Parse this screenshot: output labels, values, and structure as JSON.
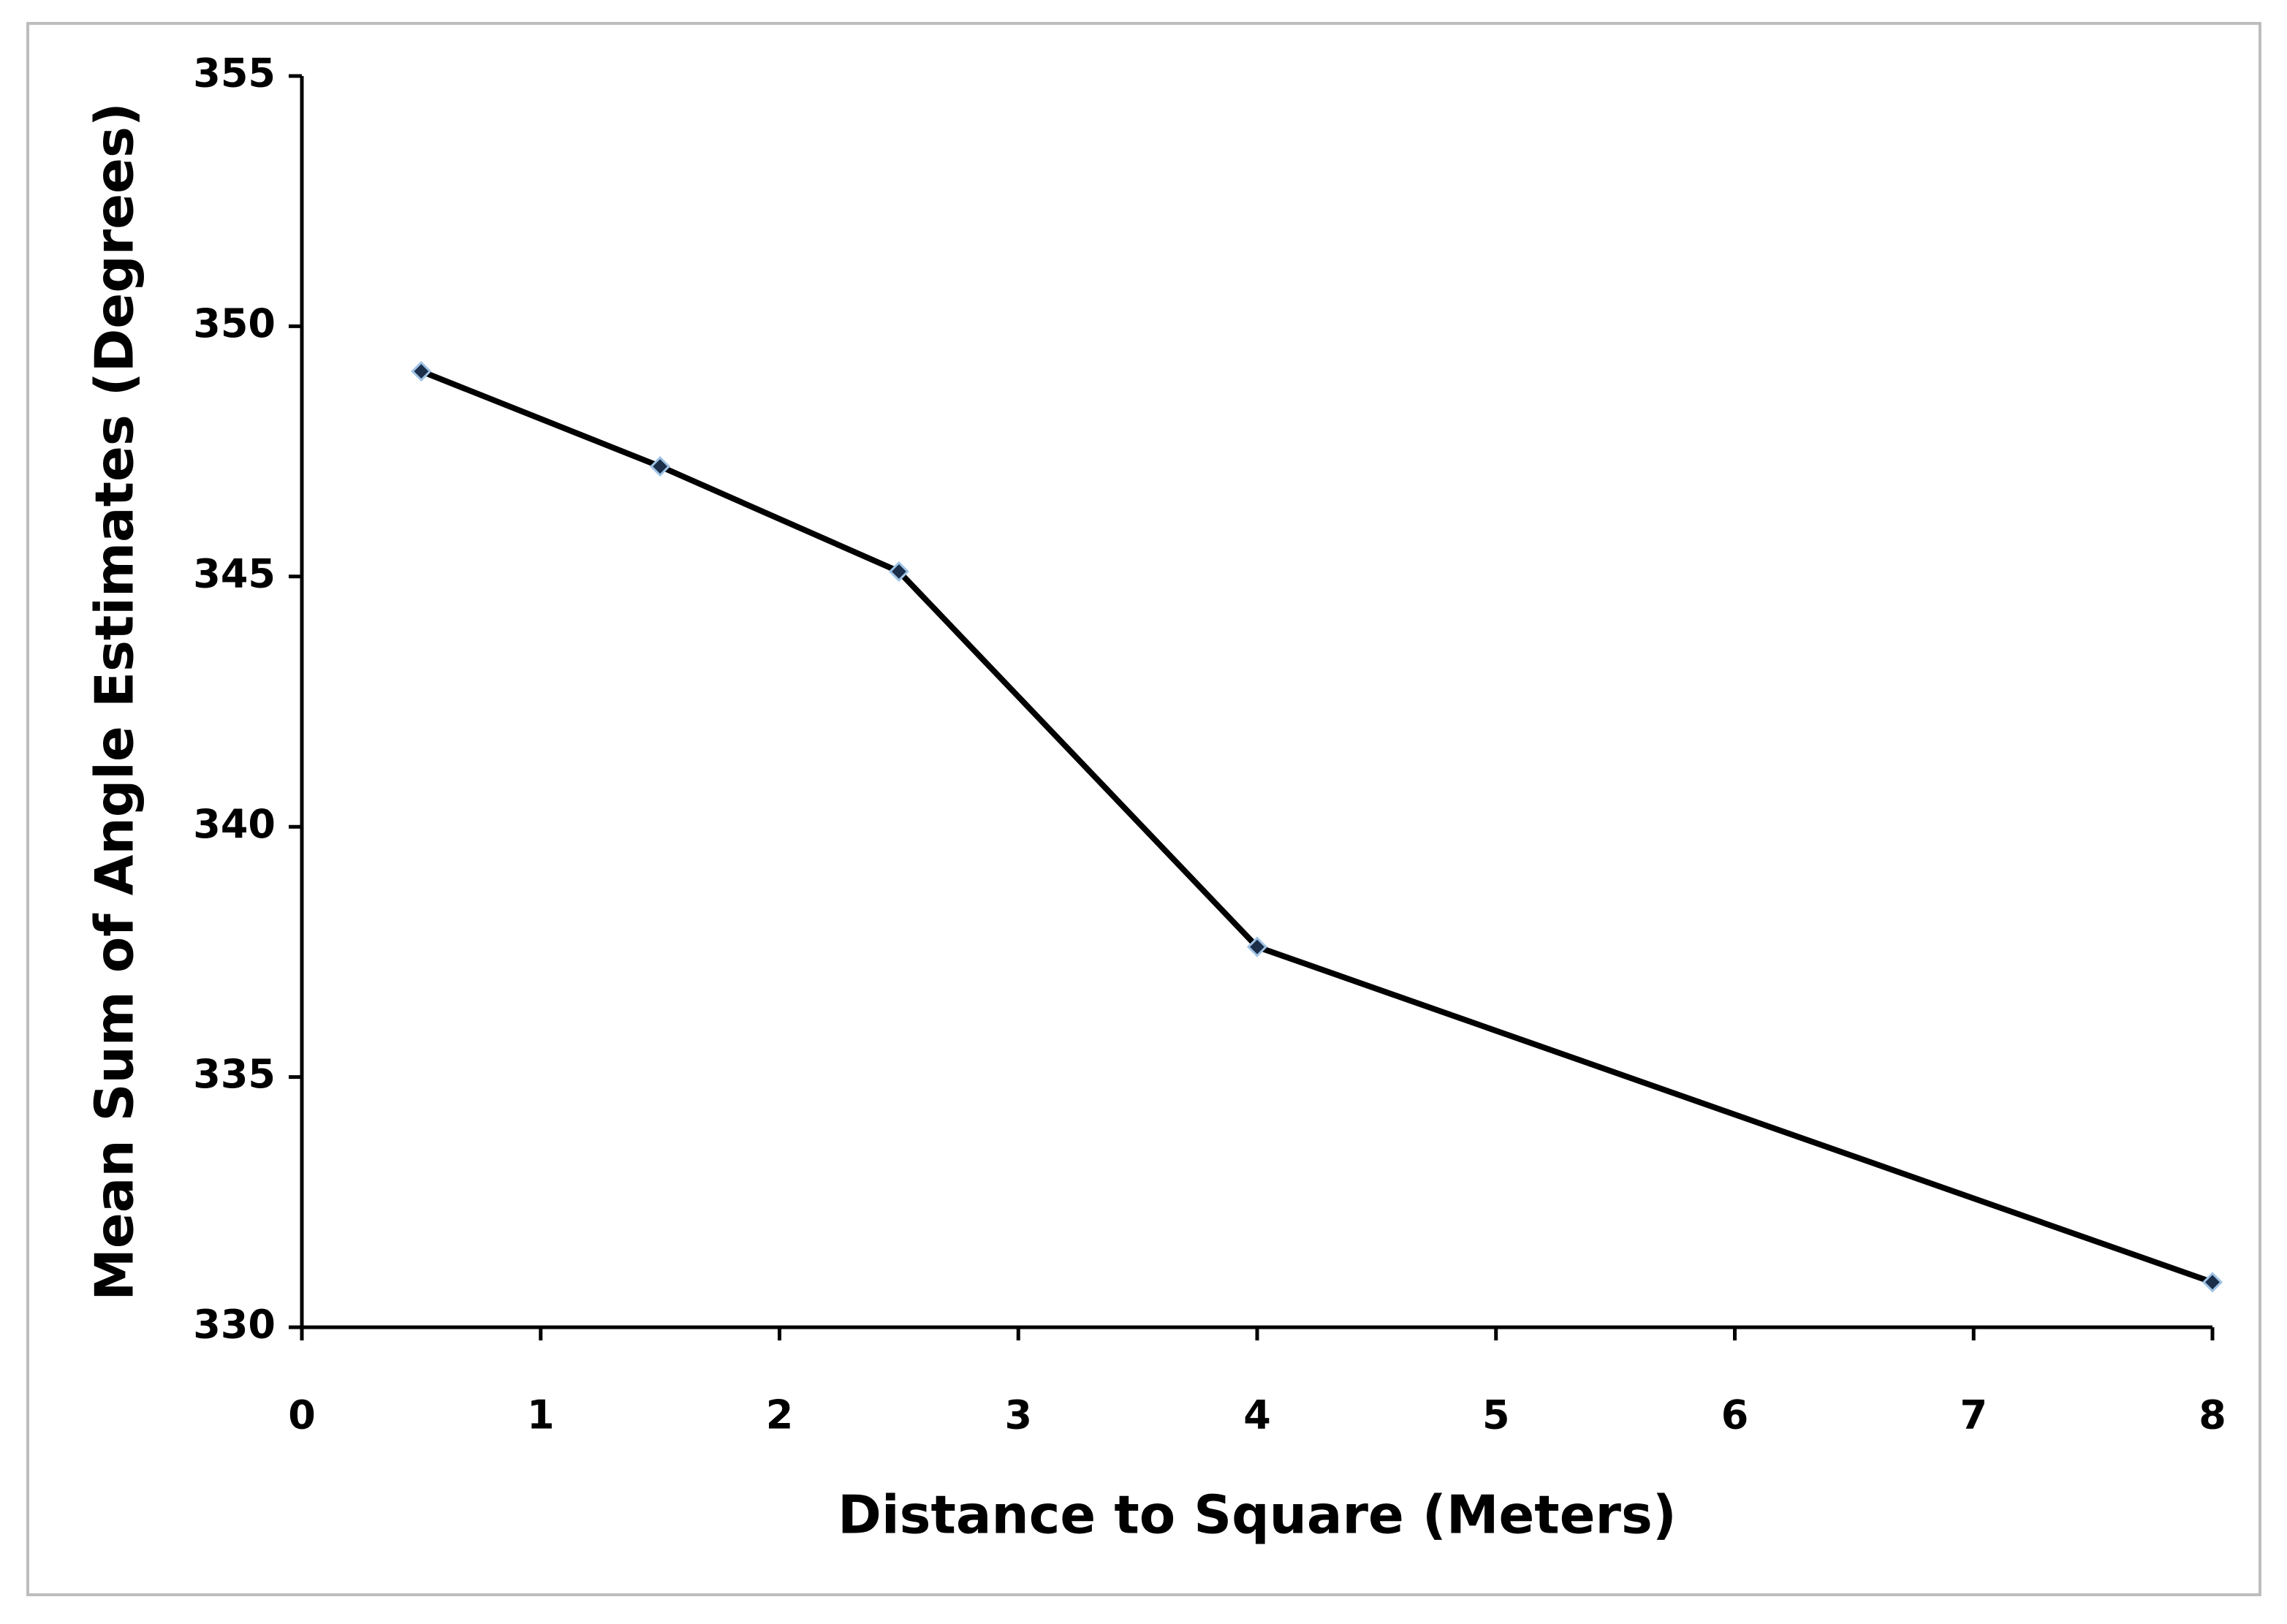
{
  "chart_data": {
    "type": "line",
    "x_label": "Distance to Square (Meters)",
    "y_label": "Mean Sum of Angle Estimates (Degrees)",
    "x": [
      0.5,
      1.5,
      2.5,
      4,
      8
    ],
    "values": [
      349.1,
      347.2,
      345.1,
      337.6,
      330.9
    ],
    "color": "#000000",
    "marker_color": "#1c2f4a",
    "xlim": [
      0,
      8
    ],
    "xticks": [
      0,
      1,
      2,
      3,
      4,
      5,
      6,
      7,
      8
    ],
    "ylim": [
      330,
      355
    ],
    "yticks": [
      330,
      335,
      340,
      345,
      350,
      355
    ],
    "grid": false
  }
}
